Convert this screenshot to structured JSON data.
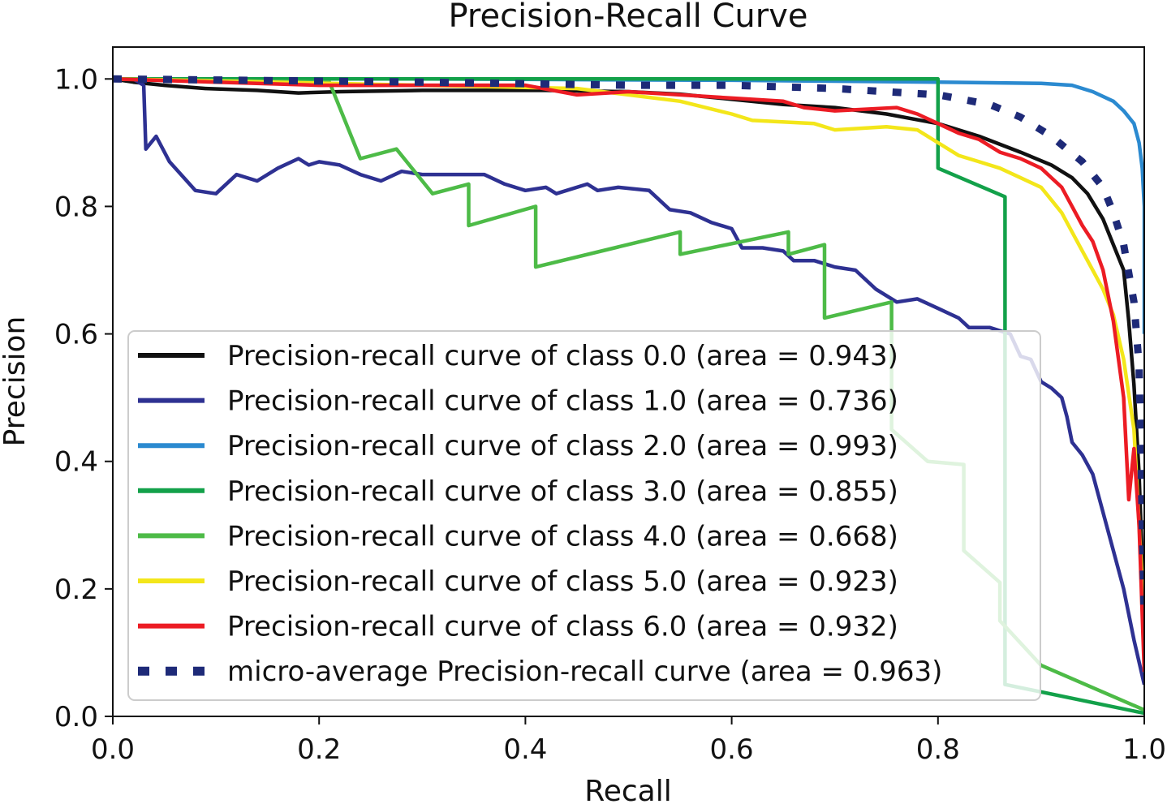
{
  "chart_data": {
    "type": "line",
    "title": "Precision-Recall Curve",
    "xlabel": "Recall",
    "ylabel": "Precision",
    "xlim": [
      0.0,
      1.0
    ],
    "ylim": [
      0.0,
      1.05
    ],
    "x_ticks": [
      "0.0",
      "0.2",
      "0.4",
      "0.6",
      "0.8",
      "1.0"
    ],
    "y_ticks": [
      "0.0",
      "0.2",
      "0.4",
      "0.6",
      "0.8",
      "1.0"
    ],
    "legend_position": "lower-left",
    "series": [
      {
        "name": "Precision-recall curve of class 0.0 (area = 0.943)",
        "color": "#111111",
        "style": "solid",
        "points": [
          [
            0.0,
            1.0
          ],
          [
            0.02,
            0.995
          ],
          [
            0.05,
            0.99
          ],
          [
            0.09,
            0.985
          ],
          [
            0.14,
            0.982
          ],
          [
            0.18,
            0.978
          ],
          [
            0.22,
            0.98
          ],
          [
            0.3,
            0.982
          ],
          [
            0.42,
            0.982
          ],
          [
            0.5,
            0.98
          ],
          [
            0.55,
            0.976
          ],
          [
            0.6,
            0.968
          ],
          [
            0.65,
            0.96
          ],
          [
            0.7,
            0.955
          ],
          [
            0.75,
            0.945
          ],
          [
            0.8,
            0.93
          ],
          [
            0.84,
            0.91
          ],
          [
            0.88,
            0.885
          ],
          [
            0.91,
            0.865
          ],
          [
            0.93,
            0.845
          ],
          [
            0.945,
            0.82
          ],
          [
            0.96,
            0.78
          ],
          [
            0.97,
            0.74
          ],
          [
            0.98,
            0.7
          ],
          [
            0.985,
            0.62
          ],
          [
            0.99,
            0.52
          ],
          [
            0.995,
            0.38
          ],
          [
            1.0,
            0.15
          ]
        ]
      },
      {
        "name": "Precision-recall curve of class 1.0 (area = 0.736)",
        "color": "#2e3192",
        "style": "solid",
        "points": [
          [
            0.0,
            1.0
          ],
          [
            0.02,
            1.0
          ],
          [
            0.03,
            0.99
          ],
          [
            0.032,
            0.89
          ],
          [
            0.042,
            0.91
          ],
          [
            0.055,
            0.87
          ],
          [
            0.08,
            0.825
          ],
          [
            0.1,
            0.82
          ],
          [
            0.12,
            0.85
          ],
          [
            0.14,
            0.84
          ],
          [
            0.16,
            0.86
          ],
          [
            0.18,
            0.875
          ],
          [
            0.19,
            0.865
          ],
          [
            0.2,
            0.87
          ],
          [
            0.22,
            0.865
          ],
          [
            0.24,
            0.85
          ],
          [
            0.26,
            0.84
          ],
          [
            0.28,
            0.855
          ],
          [
            0.3,
            0.85
          ],
          [
            0.32,
            0.85
          ],
          [
            0.36,
            0.85
          ],
          [
            0.38,
            0.835
          ],
          [
            0.4,
            0.825
          ],
          [
            0.42,
            0.83
          ],
          [
            0.43,
            0.82
          ],
          [
            0.46,
            0.835
          ],
          [
            0.47,
            0.825
          ],
          [
            0.49,
            0.83
          ],
          [
            0.52,
            0.825
          ],
          [
            0.54,
            0.795
          ],
          [
            0.56,
            0.79
          ],
          [
            0.58,
            0.775
          ],
          [
            0.6,
            0.765
          ],
          [
            0.61,
            0.735
          ],
          [
            0.63,
            0.735
          ],
          [
            0.65,
            0.73
          ],
          [
            0.66,
            0.715
          ],
          [
            0.68,
            0.715
          ],
          [
            0.7,
            0.705
          ],
          [
            0.72,
            0.7
          ],
          [
            0.74,
            0.67
          ],
          [
            0.76,
            0.65
          ],
          [
            0.78,
            0.655
          ],
          [
            0.8,
            0.64
          ],
          [
            0.82,
            0.625
          ],
          [
            0.83,
            0.61
          ],
          [
            0.85,
            0.61
          ],
          [
            0.87,
            0.6
          ],
          [
            0.88,
            0.565
          ],
          [
            0.89,
            0.56
          ],
          [
            0.9,
            0.525
          ],
          [
            0.91,
            0.515
          ],
          [
            0.92,
            0.5
          ],
          [
            0.925,
            0.47
          ],
          [
            0.93,
            0.43
          ],
          [
            0.94,
            0.41
          ],
          [
            0.95,
            0.38
          ],
          [
            0.96,
            0.32
          ],
          [
            0.97,
            0.26
          ],
          [
            0.98,
            0.2
          ],
          [
            0.99,
            0.12
          ],
          [
            1.0,
            0.05
          ]
        ]
      },
      {
        "name": "Precision-recall curve of class 2.0 (area = 0.993)",
        "color": "#2b8ad0",
        "style": "solid",
        "points": [
          [
            0.0,
            1.0
          ],
          [
            0.3,
            1.0
          ],
          [
            0.6,
            0.998
          ],
          [
            0.8,
            0.995
          ],
          [
            0.9,
            0.993
          ],
          [
            0.93,
            0.99
          ],
          [
            0.95,
            0.98
          ],
          [
            0.97,
            0.965
          ],
          [
            0.98,
            0.95
          ],
          [
            0.99,
            0.93
          ],
          [
            0.995,
            0.9
          ],
          [
            0.998,
            0.86
          ],
          [
            1.0,
            0.8
          ],
          [
            1.0,
            0.6
          ]
        ]
      },
      {
        "name": "Precision-recall curve of class 3.0 (area = 0.855)",
        "color": "#13a14a",
        "style": "solid",
        "points": [
          [
            0.0,
            1.0
          ],
          [
            0.8,
            1.0
          ],
          [
            0.8,
            0.86
          ],
          [
            0.865,
            0.815
          ],
          [
            0.865,
            0.05
          ],
          [
            1.0,
            0.005
          ]
        ]
      },
      {
        "name": "Precision-recall curve of class 4.0 (area = 0.668)",
        "color": "#4dbb47",
        "style": "solid",
        "points": [
          [
            0.0,
            1.0
          ],
          [
            0.21,
            0.995
          ],
          [
            0.24,
            0.875
          ],
          [
            0.275,
            0.89
          ],
          [
            0.31,
            0.82
          ],
          [
            0.345,
            0.835
          ],
          [
            0.345,
            0.77
          ],
          [
            0.41,
            0.8
          ],
          [
            0.41,
            0.705
          ],
          [
            0.55,
            0.76
          ],
          [
            0.55,
            0.725
          ],
          [
            0.655,
            0.76
          ],
          [
            0.655,
            0.725
          ],
          [
            0.69,
            0.74
          ],
          [
            0.69,
            0.625
          ],
          [
            0.755,
            0.65
          ],
          [
            0.755,
            0.45
          ],
          [
            0.79,
            0.4
          ],
          [
            0.825,
            0.395
          ],
          [
            0.825,
            0.26
          ],
          [
            0.86,
            0.21
          ],
          [
            0.86,
            0.15
          ],
          [
            0.9,
            0.08
          ],
          [
            1.0,
            0.01
          ]
        ]
      },
      {
        "name": "Precision-recall curve of class 5.0 (area = 0.923)",
        "color": "#f3e61a",
        "style": "solid",
        "points": [
          [
            0.0,
            1.0
          ],
          [
            0.3,
            0.99
          ],
          [
            0.45,
            0.985
          ],
          [
            0.5,
            0.975
          ],
          [
            0.55,
            0.965
          ],
          [
            0.6,
            0.945
          ],
          [
            0.62,
            0.935
          ],
          [
            0.68,
            0.93
          ],
          [
            0.7,
            0.92
          ],
          [
            0.75,
            0.925
          ],
          [
            0.78,
            0.92
          ],
          [
            0.8,
            0.9
          ],
          [
            0.82,
            0.88
          ],
          [
            0.84,
            0.87
          ],
          [
            0.86,
            0.86
          ],
          [
            0.88,
            0.845
          ],
          [
            0.9,
            0.83
          ],
          [
            0.91,
            0.81
          ],
          [
            0.92,
            0.79
          ],
          [
            0.93,
            0.76
          ],
          [
            0.94,
            0.73
          ],
          [
            0.95,
            0.7
          ],
          [
            0.96,
            0.67
          ],
          [
            0.97,
            0.63
          ],
          [
            0.98,
            0.56
          ],
          [
            0.99,
            0.45
          ],
          [
            0.995,
            0.3
          ],
          [
            1.0,
            0.15
          ]
        ]
      },
      {
        "name": "Precision-recall curve of class 6.0 (area = 0.932)",
        "color": "#ec1c24",
        "style": "solid",
        "points": [
          [
            0.0,
            1.0
          ],
          [
            0.2,
            0.99
          ],
          [
            0.4,
            0.99
          ],
          [
            0.45,
            0.975
          ],
          [
            0.5,
            0.98
          ],
          [
            0.55,
            0.975
          ],
          [
            0.6,
            0.97
          ],
          [
            0.65,
            0.965
          ],
          [
            0.67,
            0.955
          ],
          [
            0.7,
            0.95
          ],
          [
            0.76,
            0.955
          ],
          [
            0.78,
            0.945
          ],
          [
            0.8,
            0.93
          ],
          [
            0.82,
            0.915
          ],
          [
            0.84,
            0.905
          ],
          [
            0.86,
            0.885
          ],
          [
            0.88,
            0.875
          ],
          [
            0.9,
            0.86
          ],
          [
            0.91,
            0.845
          ],
          [
            0.92,
            0.83
          ],
          [
            0.93,
            0.8
          ],
          [
            0.94,
            0.77
          ],
          [
            0.95,
            0.745
          ],
          [
            0.96,
            0.7
          ],
          [
            0.97,
            0.62
          ],
          [
            0.98,
            0.5
          ],
          [
            0.985,
            0.34
          ],
          [
            0.99,
            0.42
          ],
          [
            0.995,
            0.3
          ],
          [
            1.0,
            0.07
          ]
        ]
      },
      {
        "name": "micro-average Precision-recall curve (area = 0.963)",
        "color": "#1e2a78",
        "style": "dotted",
        "points": [
          [
            0.0,
            1.0
          ],
          [
            0.3,
            0.995
          ],
          [
            0.5,
            0.99
          ],
          [
            0.6,
            0.99
          ],
          [
            0.7,
            0.985
          ],
          [
            0.8,
            0.975
          ],
          [
            0.85,
            0.96
          ],
          [
            0.88,
            0.94
          ],
          [
            0.91,
            0.91
          ],
          [
            0.94,
            0.87
          ],
          [
            0.96,
            0.83
          ],
          [
            0.97,
            0.79
          ],
          [
            0.98,
            0.74
          ],
          [
            0.99,
            0.65
          ],
          [
            0.995,
            0.55
          ],
          [
            1.0,
            0.15
          ]
        ]
      }
    ]
  }
}
